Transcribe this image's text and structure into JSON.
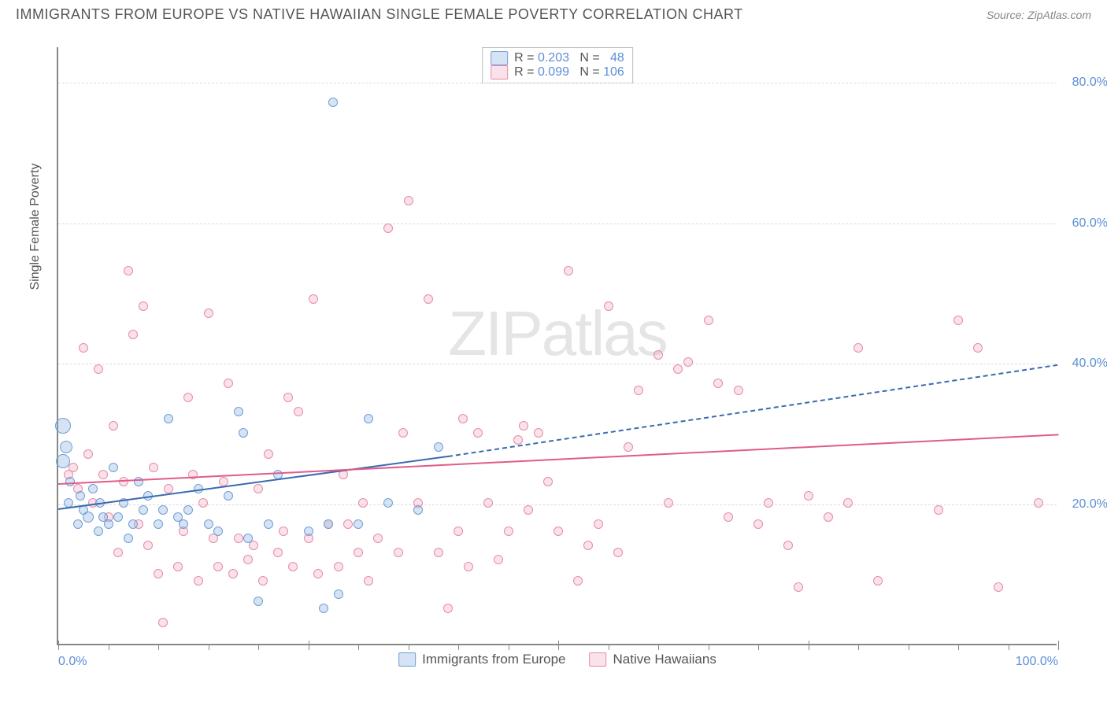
{
  "title": "IMMIGRANTS FROM EUROPE VS NATIVE HAWAIIAN SINGLE FEMALE POVERTY CORRELATION CHART",
  "source": "Source: ZipAtlas.com",
  "ylabel": "Single Female Poverty",
  "watermark_a": "ZIP",
  "watermark_b": "atlas",
  "chart": {
    "type": "scatter",
    "xlim": [
      0,
      100
    ],
    "ylim": [
      0,
      85
    ],
    "yticks": [
      {
        "v": 20,
        "label": "20.0%"
      },
      {
        "v": 40,
        "label": "40.0%"
      },
      {
        "v": 60,
        "label": "60.0%"
      },
      {
        "v": 80,
        "label": "80.0%"
      }
    ],
    "xticks_major": [
      0,
      25,
      50,
      75,
      100
    ],
    "xticks_minor": [
      5,
      10,
      15,
      20,
      30,
      35,
      40,
      45,
      55,
      60,
      65,
      70,
      80,
      85,
      90,
      95
    ],
    "xlabels": [
      {
        "v": 0,
        "label": "0.0%"
      },
      {
        "v": 100,
        "label": "100.0%"
      }
    ],
    "background_color": "#ffffff",
    "grid_color": "#dddddd",
    "axis_color": "#888888",
    "tick_label_color": "#5b8fd6"
  },
  "series": {
    "a": {
      "label": "Immigrants from Europe",
      "fill": "rgba(135,175,225,0.35)",
      "stroke": "#6d9fd4",
      "trend_color": "#3b6bb0",
      "R_label": "R = ",
      "R": "0.203",
      "N_label": "   N = ",
      "N": "  48",
      "trend": {
        "x1": 0,
        "y1": 19.5,
        "x2_solid": 39,
        "y2_solid": 27,
        "x2_dash": 100,
        "y2_dash": 40
      },
      "points": [
        {
          "x": 0.5,
          "y": 31,
          "r": 10
        },
        {
          "x": 0.5,
          "y": 26,
          "r": 9
        },
        {
          "x": 0.8,
          "y": 28,
          "r": 8
        },
        {
          "x": 1,
          "y": 20,
          "r": 6
        },
        {
          "x": 1.2,
          "y": 23,
          "r": 6
        },
        {
          "x": 2,
          "y": 17,
          "r": 6
        },
        {
          "x": 2.2,
          "y": 21,
          "r": 6
        },
        {
          "x": 2.5,
          "y": 19,
          "r": 6
        },
        {
          "x": 3,
          "y": 18,
          "r": 7
        },
        {
          "x": 3.5,
          "y": 22,
          "r": 6
        },
        {
          "x": 4,
          "y": 16,
          "r": 6
        },
        {
          "x": 4.2,
          "y": 20,
          "r": 6
        },
        {
          "x": 4.5,
          "y": 18,
          "r": 6
        },
        {
          "x": 5,
          "y": 17,
          "r": 6
        },
        {
          "x": 5.5,
          "y": 25,
          "r": 6
        },
        {
          "x": 6,
          "y": 18,
          "r": 6
        },
        {
          "x": 6.5,
          "y": 20,
          "r": 6
        },
        {
          "x": 7,
          "y": 15,
          "r": 6
        },
        {
          "x": 7.5,
          "y": 17,
          "r": 6
        },
        {
          "x": 8,
          "y": 23,
          "r": 6
        },
        {
          "x": 8.5,
          "y": 19,
          "r": 6
        },
        {
          "x": 9,
          "y": 21,
          "r": 6
        },
        {
          "x": 10,
          "y": 17,
          "r": 6
        },
        {
          "x": 10.5,
          "y": 19,
          "r": 6
        },
        {
          "x": 11,
          "y": 32,
          "r": 6
        },
        {
          "x": 12,
          "y": 18,
          "r": 6
        },
        {
          "x": 12.5,
          "y": 17,
          "r": 6
        },
        {
          "x": 13,
          "y": 19,
          "r": 6
        },
        {
          "x": 14,
          "y": 22,
          "r": 6
        },
        {
          "x": 15,
          "y": 17,
          "r": 6
        },
        {
          "x": 16,
          "y": 16,
          "r": 6
        },
        {
          "x": 17,
          "y": 21,
          "r": 6
        },
        {
          "x": 18,
          "y": 33,
          "r": 6
        },
        {
          "x": 18.5,
          "y": 30,
          "r": 6
        },
        {
          "x": 19,
          "y": 15,
          "r": 6
        },
        {
          "x": 20,
          "y": 6,
          "r": 6
        },
        {
          "x": 21,
          "y": 17,
          "r": 6
        },
        {
          "x": 22,
          "y": 24,
          "r": 6
        },
        {
          "x": 25,
          "y": 16,
          "r": 6
        },
        {
          "x": 26.5,
          "y": 5,
          "r": 6
        },
        {
          "x": 27,
          "y": 17,
          "r": 6
        },
        {
          "x": 27.5,
          "y": 77,
          "r": 6
        },
        {
          "x": 28,
          "y": 7,
          "r": 6
        },
        {
          "x": 30,
          "y": 17,
          "r": 6
        },
        {
          "x": 31,
          "y": 32,
          "r": 6
        },
        {
          "x": 33,
          "y": 20,
          "r": 6
        },
        {
          "x": 36,
          "y": 19,
          "r": 6
        },
        {
          "x": 38,
          "y": 28,
          "r": 6
        }
      ]
    },
    "b": {
      "label": "Native Hawaiians",
      "fill": "rgba(240,160,185,0.30)",
      "stroke": "#e88aa8",
      "trend_color": "#e15b8a",
      "R_label": "R = ",
      "R": "0.099",
      "N_label": "   N = ",
      "N": "106",
      "trend": {
        "x1": 0,
        "y1": 23,
        "x2_solid": 100,
        "y2_solid": 30,
        "x2_dash": 100,
        "y2_dash": 30
      },
      "points": [
        {
          "x": 1,
          "y": 24,
          "r": 6
        },
        {
          "x": 1.5,
          "y": 25,
          "r": 6
        },
        {
          "x": 2,
          "y": 22,
          "r": 6
        },
        {
          "x": 2.5,
          "y": 42,
          "r": 6
        },
        {
          "x": 3,
          "y": 27,
          "r": 6
        },
        {
          "x": 3.5,
          "y": 20,
          "r": 6
        },
        {
          "x": 4,
          "y": 39,
          "r": 6
        },
        {
          "x": 4.5,
          "y": 24,
          "r": 6
        },
        {
          "x": 5,
          "y": 18,
          "r": 6
        },
        {
          "x": 5.5,
          "y": 31,
          "r": 6
        },
        {
          "x": 6,
          "y": 13,
          "r": 6
        },
        {
          "x": 6.5,
          "y": 23,
          "r": 6
        },
        {
          "x": 7,
          "y": 53,
          "r": 6
        },
        {
          "x": 7.5,
          "y": 44,
          "r": 6
        },
        {
          "x": 8,
          "y": 17,
          "r": 6
        },
        {
          "x": 8.5,
          "y": 48,
          "r": 6
        },
        {
          "x": 9,
          "y": 14,
          "r": 6
        },
        {
          "x": 9.5,
          "y": 25,
          "r": 6
        },
        {
          "x": 10,
          "y": 10,
          "r": 6
        },
        {
          "x": 10.5,
          "y": 3,
          "r": 6
        },
        {
          "x": 11,
          "y": 22,
          "r": 6
        },
        {
          "x": 12,
          "y": 11,
          "r": 6
        },
        {
          "x": 12.5,
          "y": 16,
          "r": 6
        },
        {
          "x": 13,
          "y": 35,
          "r": 6
        },
        {
          "x": 13.5,
          "y": 24,
          "r": 6
        },
        {
          "x": 14,
          "y": 9,
          "r": 6
        },
        {
          "x": 14.5,
          "y": 20,
          "r": 6
        },
        {
          "x": 15,
          "y": 47,
          "r": 6
        },
        {
          "x": 15.5,
          "y": 15,
          "r": 6
        },
        {
          "x": 16,
          "y": 11,
          "r": 6
        },
        {
          "x": 16.5,
          "y": 23,
          "r": 6
        },
        {
          "x": 17,
          "y": 37,
          "r": 6
        },
        {
          "x": 17.5,
          "y": 10,
          "r": 6
        },
        {
          "x": 18,
          "y": 15,
          "r": 6
        },
        {
          "x": 19,
          "y": 12,
          "r": 6
        },
        {
          "x": 19.5,
          "y": 14,
          "r": 6
        },
        {
          "x": 20,
          "y": 22,
          "r": 6
        },
        {
          "x": 20.5,
          "y": 9,
          "r": 6
        },
        {
          "x": 21,
          "y": 27,
          "r": 6
        },
        {
          "x": 22,
          "y": 13,
          "r": 6
        },
        {
          "x": 22.5,
          "y": 16,
          "r": 6
        },
        {
          "x": 23,
          "y": 35,
          "r": 6
        },
        {
          "x": 23.5,
          "y": 11,
          "r": 6
        },
        {
          "x": 24,
          "y": 33,
          "r": 6
        },
        {
          "x": 25,
          "y": 15,
          "r": 6
        },
        {
          "x": 25.5,
          "y": 49,
          "r": 6
        },
        {
          "x": 26,
          "y": 10,
          "r": 6
        },
        {
          "x": 27,
          "y": 17,
          "r": 6
        },
        {
          "x": 28,
          "y": 11,
          "r": 6
        },
        {
          "x": 28.5,
          "y": 24,
          "r": 6
        },
        {
          "x": 29,
          "y": 17,
          "r": 6
        },
        {
          "x": 30,
          "y": 13,
          "r": 6
        },
        {
          "x": 30.5,
          "y": 20,
          "r": 6
        },
        {
          "x": 31,
          "y": 9,
          "r": 6
        },
        {
          "x": 32,
          "y": 15,
          "r": 6
        },
        {
          "x": 33,
          "y": 59,
          "r": 6
        },
        {
          "x": 34,
          "y": 13,
          "r": 6
        },
        {
          "x": 34.5,
          "y": 30,
          "r": 6
        },
        {
          "x": 35,
          "y": 63,
          "r": 6
        },
        {
          "x": 36,
          "y": 20,
          "r": 6
        },
        {
          "x": 37,
          "y": 49,
          "r": 6
        },
        {
          "x": 38,
          "y": 13,
          "r": 6
        },
        {
          "x": 39,
          "y": 5,
          "r": 6
        },
        {
          "x": 40,
          "y": 16,
          "r": 6
        },
        {
          "x": 40.5,
          "y": 32,
          "r": 6
        },
        {
          "x": 41,
          "y": 11,
          "r": 6
        },
        {
          "x": 42,
          "y": 30,
          "r": 6
        },
        {
          "x": 43,
          "y": 20,
          "r": 6
        },
        {
          "x": 44,
          "y": 12,
          "r": 6
        },
        {
          "x": 45,
          "y": 16,
          "r": 6
        },
        {
          "x": 46,
          "y": 29,
          "r": 6
        },
        {
          "x": 46.5,
          "y": 31,
          "r": 6
        },
        {
          "x": 47,
          "y": 19,
          "r": 6
        },
        {
          "x": 48,
          "y": 30,
          "r": 6
        },
        {
          "x": 49,
          "y": 23,
          "r": 6
        },
        {
          "x": 50,
          "y": 16,
          "r": 6
        },
        {
          "x": 51,
          "y": 53,
          "r": 6
        },
        {
          "x": 52,
          "y": 9,
          "r": 6
        },
        {
          "x": 53,
          "y": 14,
          "r": 6
        },
        {
          "x": 54,
          "y": 17,
          "r": 6
        },
        {
          "x": 55,
          "y": 48,
          "r": 6
        },
        {
          "x": 56,
          "y": 13,
          "r": 6
        },
        {
          "x": 57,
          "y": 28,
          "r": 6
        },
        {
          "x": 58,
          "y": 36,
          "r": 6
        },
        {
          "x": 60,
          "y": 41,
          "r": 6
        },
        {
          "x": 61,
          "y": 20,
          "r": 6
        },
        {
          "x": 62,
          "y": 39,
          "r": 6
        },
        {
          "x": 63,
          "y": 40,
          "r": 6
        },
        {
          "x": 65,
          "y": 46,
          "r": 6
        },
        {
          "x": 66,
          "y": 37,
          "r": 6
        },
        {
          "x": 67,
          "y": 18,
          "r": 6
        },
        {
          "x": 68,
          "y": 36,
          "r": 6
        },
        {
          "x": 70,
          "y": 17,
          "r": 6
        },
        {
          "x": 71,
          "y": 20,
          "r": 6
        },
        {
          "x": 73,
          "y": 14,
          "r": 6
        },
        {
          "x": 74,
          "y": 8,
          "r": 6
        },
        {
          "x": 75,
          "y": 21,
          "r": 6
        },
        {
          "x": 77,
          "y": 18,
          "r": 6
        },
        {
          "x": 79,
          "y": 20,
          "r": 6
        },
        {
          "x": 80,
          "y": 42,
          "r": 6
        },
        {
          "x": 82,
          "y": 9,
          "r": 6
        },
        {
          "x": 88,
          "y": 19,
          "r": 6
        },
        {
          "x": 90,
          "y": 46,
          "r": 6
        },
        {
          "x": 92,
          "y": 42,
          "r": 6
        },
        {
          "x": 94,
          "y": 8,
          "r": 6
        },
        {
          "x": 98,
          "y": 20,
          "r": 6
        }
      ]
    }
  }
}
